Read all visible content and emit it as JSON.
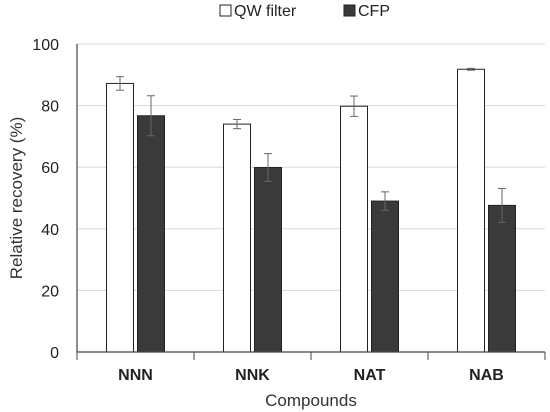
{
  "chart_data": {
    "type": "bar",
    "title": "",
    "xlabel": "Compounds",
    "ylabel": "Relative recovery (%)",
    "ylim": [
      0,
      100
    ],
    "yticks": [
      0,
      20,
      40,
      60,
      80,
      100
    ],
    "grid": true,
    "legend_position": "top-center",
    "categories": [
      "NNN",
      "NNK",
      "NAT",
      "NAB"
    ],
    "series": [
      {
        "name": "QW filter",
        "color": "#ffffff",
        "values": [
          87.2,
          74.0,
          79.8,
          91.8
        ],
        "errors": [
          2.2,
          1.5,
          3.3,
          0.3
        ]
      },
      {
        "name": "CFP",
        "color": "#3a3a3a",
        "values": [
          76.7,
          59.9,
          49.0,
          47.6
        ],
        "errors": [
          6.5,
          4.5,
          3.0,
          5.5
        ]
      }
    ]
  }
}
